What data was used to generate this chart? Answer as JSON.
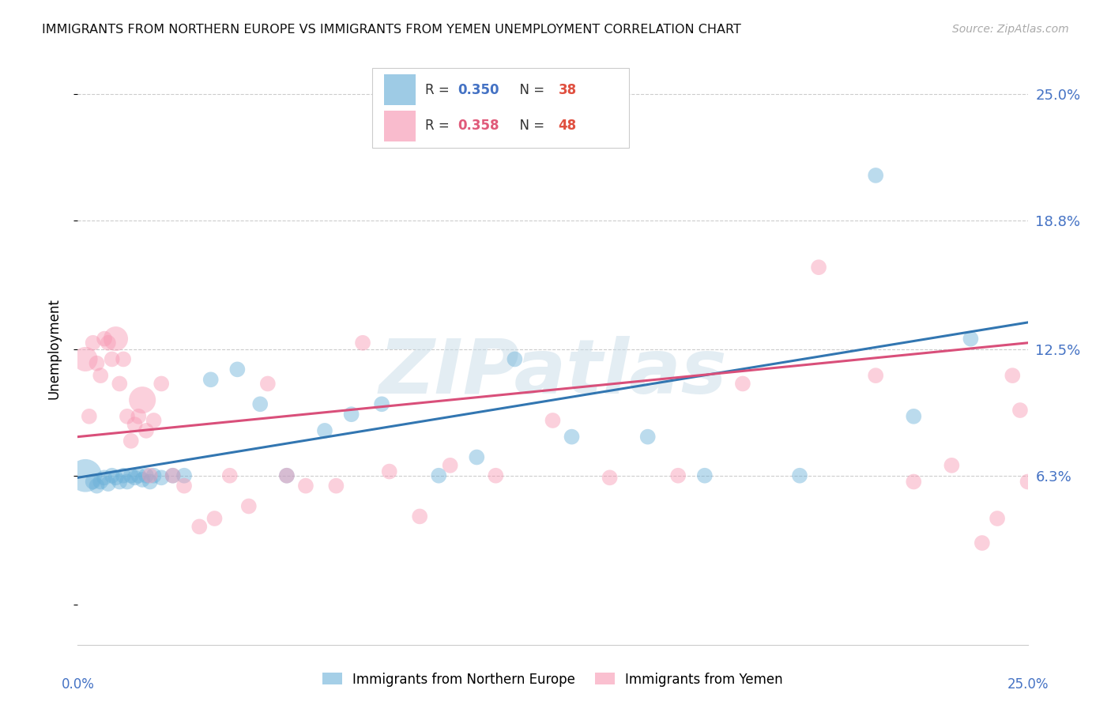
{
  "title": "IMMIGRANTS FROM NORTHERN EUROPE VS IMMIGRANTS FROM YEMEN UNEMPLOYMENT CORRELATION CHART",
  "source": "Source: ZipAtlas.com",
  "ylabel": "Unemployment",
  "ytick_vals": [
    0.0,
    0.063,
    0.125,
    0.188,
    0.25
  ],
  "ytick_labels": [
    "",
    "6.3%",
    "12.5%",
    "18.8%",
    "25.0%"
  ],
  "xlim": [
    0.0,
    0.25
  ],
  "ylim": [
    -0.02,
    0.27
  ],
  "legend1_label": "Immigrants from Northern Europe",
  "legend2_label": "Immigrants from Yemen",
  "r1": 0.35,
  "n1": 38,
  "r2": 0.358,
  "n2": 48,
  "color_blue": "#6ab0d8",
  "color_pink": "#f797b2",
  "color_blue_line": "#3276b1",
  "color_pink_line": "#d94f7a",
  "watermark": "ZIPatlas",
  "blue_x": [
    0.002,
    0.004,
    0.005,
    0.006,
    0.007,
    0.008,
    0.009,
    0.01,
    0.011,
    0.012,
    0.013,
    0.014,
    0.015,
    0.016,
    0.017,
    0.018,
    0.019,
    0.02,
    0.022,
    0.025,
    0.028,
    0.035,
    0.042,
    0.048,
    0.055,
    0.065,
    0.072,
    0.08,
    0.095,
    0.105,
    0.115,
    0.13,
    0.15,
    0.165,
    0.19,
    0.21,
    0.22,
    0.235
  ],
  "blue_y": [
    0.063,
    0.06,
    0.058,
    0.06,
    0.062,
    0.059,
    0.063,
    0.062,
    0.06,
    0.063,
    0.06,
    0.063,
    0.062,
    0.063,
    0.061,
    0.063,
    0.06,
    0.063,
    0.062,
    0.063,
    0.063,
    0.11,
    0.115,
    0.098,
    0.063,
    0.085,
    0.093,
    0.098,
    0.063,
    0.072,
    0.12,
    0.082,
    0.082,
    0.063,
    0.063,
    0.21,
    0.092,
    0.13
  ],
  "blue_sizes": [
    900,
    200,
    200,
    200,
    200,
    200,
    200,
    200,
    200,
    200,
    200,
    200,
    200,
    200,
    200,
    200,
    200,
    200,
    200,
    200,
    200,
    200,
    200,
    200,
    200,
    200,
    200,
    200,
    200,
    200,
    200,
    200,
    200,
    200,
    200,
    200,
    200,
    200
  ],
  "pink_x": [
    0.002,
    0.003,
    0.004,
    0.005,
    0.006,
    0.007,
    0.008,
    0.009,
    0.01,
    0.011,
    0.012,
    0.013,
    0.014,
    0.015,
    0.016,
    0.017,
    0.018,
    0.019,
    0.02,
    0.022,
    0.025,
    0.028,
    0.032,
    0.036,
    0.04,
    0.045,
    0.05,
    0.055,
    0.06,
    0.068,
    0.075,
    0.082,
    0.09,
    0.098,
    0.11,
    0.125,
    0.14,
    0.158,
    0.175,
    0.195,
    0.21,
    0.22,
    0.23,
    0.238,
    0.242,
    0.246,
    0.248,
    0.25
  ],
  "pink_y": [
    0.12,
    0.092,
    0.128,
    0.118,
    0.112,
    0.13,
    0.128,
    0.12,
    0.13,
    0.108,
    0.12,
    0.092,
    0.08,
    0.088,
    0.092,
    0.1,
    0.085,
    0.063,
    0.09,
    0.108,
    0.063,
    0.058,
    0.038,
    0.042,
    0.063,
    0.048,
    0.108,
    0.063,
    0.058,
    0.058,
    0.128,
    0.065,
    0.043,
    0.068,
    0.063,
    0.09,
    0.062,
    0.063,
    0.108,
    0.165,
    0.112,
    0.06,
    0.068,
    0.03,
    0.042,
    0.112,
    0.095,
    0.06
  ],
  "pink_sizes": [
    500,
    200,
    200,
    200,
    200,
    200,
    200,
    200,
    500,
    200,
    200,
    200,
    200,
    200,
    200,
    600,
    200,
    200,
    200,
    200,
    200,
    200,
    200,
    200,
    200,
    200,
    200,
    200,
    200,
    200,
    200,
    200,
    200,
    200,
    200,
    200,
    200,
    200,
    200,
    200,
    200,
    200,
    200,
    200,
    200,
    200,
    200,
    200
  ],
  "blue_line_x": [
    0.0,
    0.25
  ],
  "blue_line_y": [
    0.062,
    0.138
  ],
  "pink_line_x": [
    0.0,
    0.25
  ],
  "pink_line_y": [
    0.082,
    0.128
  ]
}
